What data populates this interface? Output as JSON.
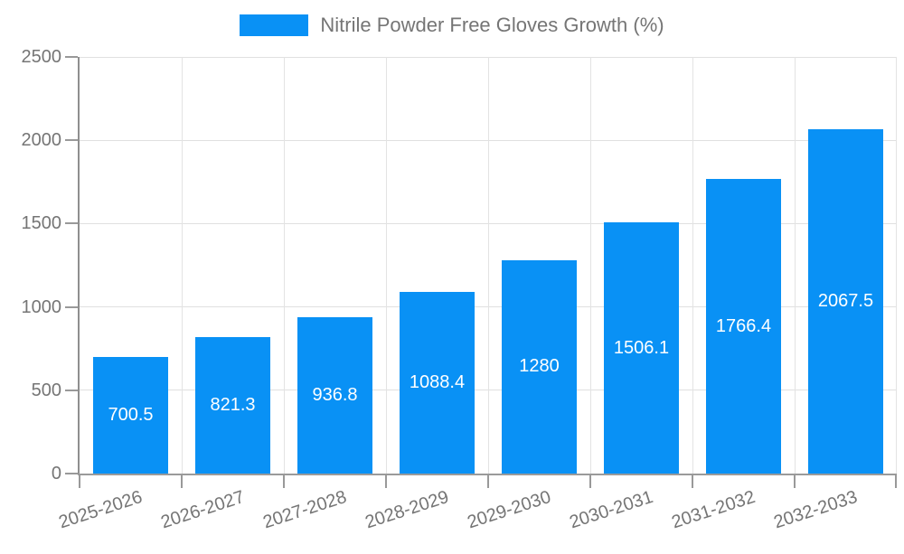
{
  "legend": {
    "label": "Nitrile Powder Free Gloves Growth (%)",
    "swatch_color": "#0991f5"
  },
  "colors": {
    "bar": "#0991f5",
    "grid": "#e0e0e0",
    "axis": "#8f8f8f",
    "tick": "#999999",
    "axis_text": "#757575",
    "value_text": "#ffffff",
    "background": "#ffffff"
  },
  "chart_data": {
    "type": "bar",
    "categories": [
      "2025-2026",
      "2026-2027",
      "2027-2028",
      "2028-2029",
      "2029-2030",
      "2030-2031",
      "2031-2032",
      "2032-2033"
    ],
    "values": [
      700.5,
      821.3,
      936.8,
      1088.4,
      1280,
      1506.1,
      1766.4,
      2067.5
    ],
    "title": "Nitrile Powder Free Gloves Growth (%)",
    "xlabel": "",
    "ylabel": "",
    "ylim": [
      0,
      2500
    ],
    "yticks": [
      0,
      500,
      1000,
      1500,
      2000,
      2500
    ],
    "grid": true,
    "legend_position": "top",
    "bar_color": "#0991f5",
    "value_labels": "inside-center",
    "x_label_rotation_deg": -18
  }
}
